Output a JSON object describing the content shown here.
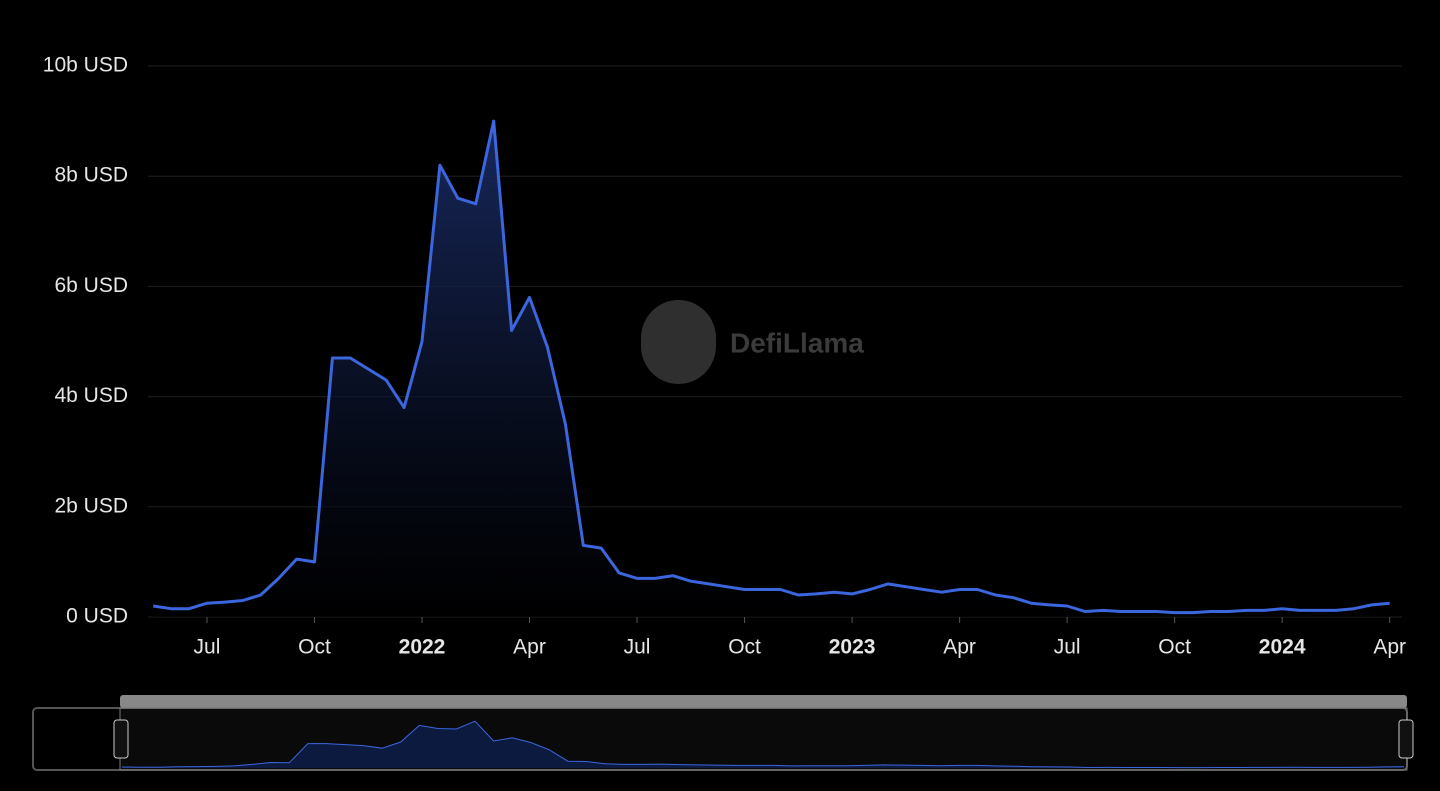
{
  "chart_data": {
    "type": "area",
    "watermark": "DefiLlama",
    "categories": [
      null,
      null,
      null,
      "Jul",
      null,
      null,
      null,
      null,
      null,
      "Oct",
      null,
      null,
      null,
      null,
      null,
      "2022",
      null,
      null,
      null,
      null,
      null,
      "Apr",
      null,
      null,
      null,
      null,
      null,
      "Jul",
      null,
      null,
      null,
      null,
      null,
      "Oct",
      null,
      null,
      null,
      null,
      null,
      "2023",
      null,
      null,
      null,
      null,
      null,
      "Apr",
      null,
      null,
      null,
      null,
      null,
      "Jul",
      null,
      null,
      null,
      null,
      null,
      "Oct",
      null,
      null,
      null,
      null,
      null,
      "2024",
      null,
      null,
      null,
      null,
      null,
      "Apr"
    ],
    "values": [
      0.2,
      0.15,
      0.15,
      0.25,
      0.27,
      0.3,
      0.4,
      0.7,
      1.05,
      1.0,
      4.7,
      4.7,
      4.5,
      4.3,
      3.8,
      5.0,
      8.2,
      7.6,
      7.5,
      9.0,
      5.2,
      5.8,
      4.9,
      3.5,
      1.3,
      1.25,
      0.8,
      0.7,
      0.7,
      0.75,
      0.65,
      0.6,
      0.55,
      0.5,
      0.5,
      0.5,
      0.4,
      0.42,
      0.45,
      0.42,
      0.5,
      0.6,
      0.55,
      0.5,
      0.45,
      0.5,
      0.5,
      0.4,
      0.35,
      0.25,
      0.22,
      0.2,
      0.1,
      0.12,
      0.1,
      0.1,
      0.1,
      0.08,
      0.08,
      0.1,
      0.1,
      0.12,
      0.12,
      0.15,
      0.12,
      0.12,
      0.12,
      0.15,
      0.22,
      0.25
    ],
    "color": "#3b66dd",
    "ylim": [
      0,
      10
    ],
    "yticks": [
      {
        "value": 0,
        "label": "0 USD"
      },
      {
        "value": 2,
        "label": "2b USD"
      },
      {
        "value": 4,
        "label": "4b USD"
      },
      {
        "value": 6,
        "label": "6b USD"
      },
      {
        "value": 8,
        "label": "8b USD"
      },
      {
        "value": 10,
        "label": "10b USD"
      }
    ],
    "grid": true
  }
}
